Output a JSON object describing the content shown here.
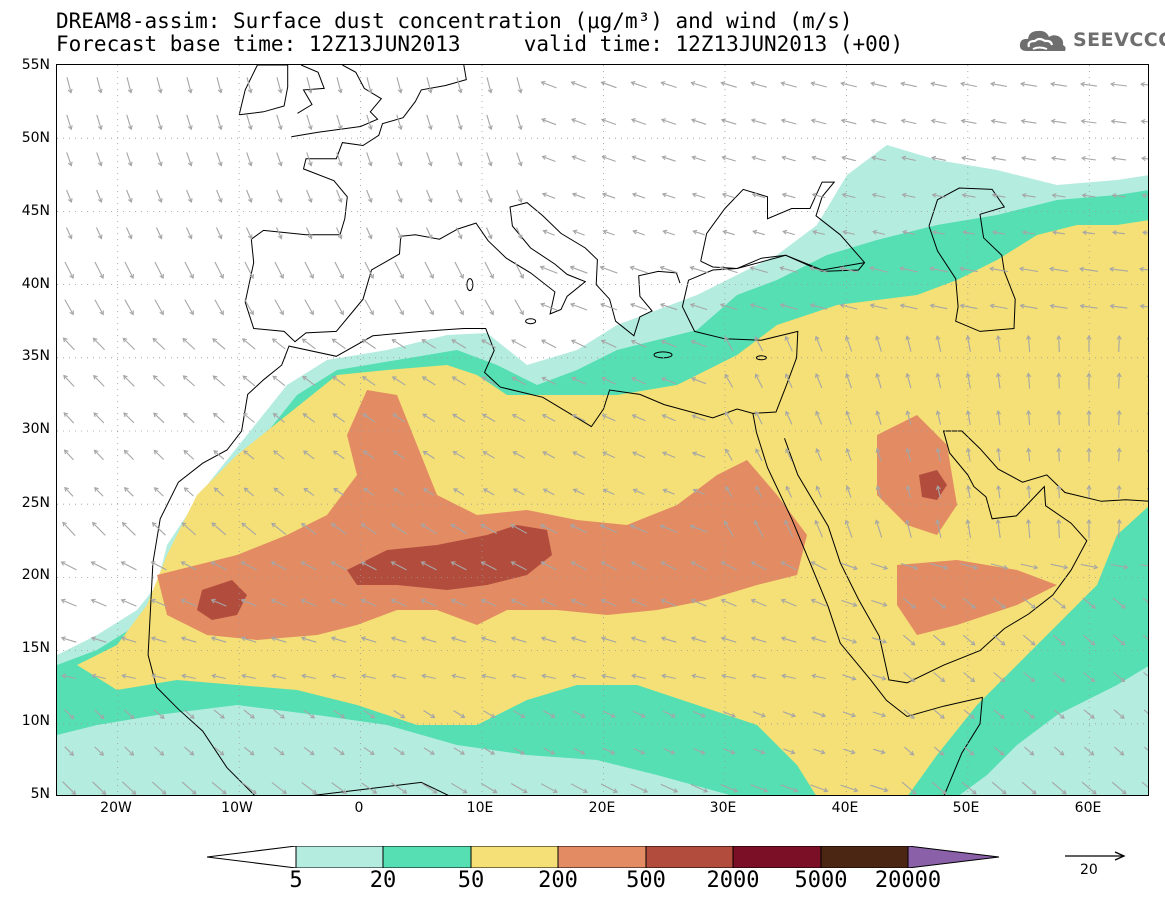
{
  "title": {
    "line1": "DREAM8-assim: Surface dust concentration (μg/m³) and wind (m/s)",
    "line2": "Forecast base time: 12Z13JUN2013     valid time: 12Z13JUN2013 (+00)"
  },
  "logo": {
    "text": "SEEVCCC",
    "icon": "cloud-icon"
  },
  "axes": {
    "lat_labels": [
      "55N",
      "50N",
      "45N",
      "40N",
      "35N",
      "30N",
      "25N",
      "20N",
      "15N",
      "10N",
      "5N"
    ],
    "lon_labels": [
      "20W",
      "10W",
      "0",
      "10E",
      "20E",
      "30E",
      "40E",
      "50E",
      "60E"
    ],
    "lat_range": [
      5,
      55
    ],
    "lon_range": [
      -25,
      65
    ]
  },
  "colorbar": {
    "levels": [
      "5",
      "20",
      "50",
      "200",
      "500",
      "2000",
      "5000",
      "20000"
    ],
    "colors": [
      "#ffffff",
      "#b4ecdf",
      "#55dfb2",
      "#f4e076",
      "#e38b63",
      "#b24d3e",
      "#7b0f26",
      "#4a2613",
      "#8a60a8"
    ]
  },
  "wind_scale": {
    "label": "20"
  },
  "colors": {
    "c5": "#b4ecdf",
    "c20": "#55dfb2",
    "c50": "#f4e076",
    "c200": "#e38b63",
    "c500": "#b24d3e",
    "arrow": "#a6a6a6",
    "coast": "#000000",
    "grid": "#9a9a9a"
  }
}
